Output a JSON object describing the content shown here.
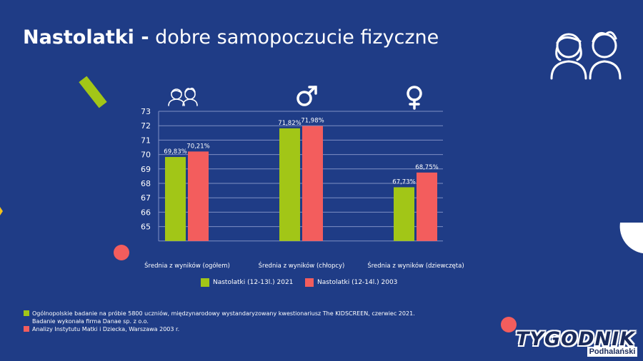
{
  "title": {
    "bold": "Nastolatki -",
    "rest": " dobre samopoczucie fizyczne"
  },
  "colors": {
    "background": "#1f3c86",
    "series_2021": "#a2c617",
    "series_2003": "#f35d5d",
    "accent_green": "#a2c617",
    "accent_red": "#f35d5d"
  },
  "chart_data": {
    "type": "bar",
    "categories": [
      "Średnia z wyników (ogółem)",
      "Średnia z wyników (chłopcy)",
      "Średnia z wyników (dziewczęta)"
    ],
    "category_icons": [
      "boy-girl-icon",
      "male-symbol-icon",
      "female-symbol-icon"
    ],
    "series": [
      {
        "name": "Nastolatki (12-13l.) 2021",
        "values": [
          69.83,
          71.82,
          67.73
        ],
        "labels": [
          "69,83%",
          "71,82%",
          "67,73%"
        ]
      },
      {
        "name": "Nastolatki (12-14l.) 2003",
        "values": [
          70.21,
          71.98,
          68.75
        ],
        "labels": [
          "70,21%",
          "71,98%",
          "68,75%"
        ]
      }
    ],
    "yticks": [
      "73",
      "72",
      "71",
      "70",
      "69",
      "68",
      "67",
      "66",
      "65"
    ],
    "ylim": [
      64,
      73
    ],
    "grid": true,
    "legend_position": "bottom"
  },
  "footnotes": {
    "line1": "Ogólnopolskie badanie na próbie 5800 uczniów, międzynarodowy wystandaryzowany kwestionariusz The KIDSCREEN, czerwiec 2021.",
    "line2": "Badanie wykonała firma Danae sp. z o.o.",
    "line3": "Analizy Instytutu Matki i Dziecka, Warszawa 2003 r."
  },
  "logo": {
    "main": "TYGODNIK",
    "sub": "Podhalański"
  }
}
